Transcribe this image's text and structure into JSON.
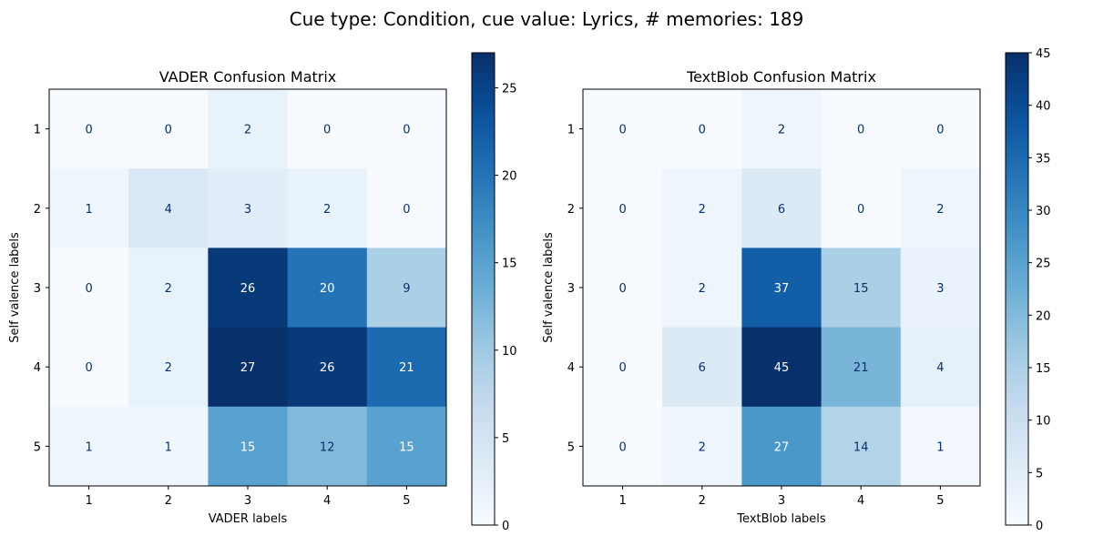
{
  "suptitle": "Cue type: Condition, cue value: Lyrics, # memories: 189",
  "chart_data": [
    {
      "type": "heatmap",
      "title": "VADER Confusion Matrix",
      "xlabel": "VADER labels",
      "ylabel": "Self valence labels",
      "x_categories": [
        "1",
        "2",
        "3",
        "4",
        "5"
      ],
      "y_categories": [
        "1",
        "2",
        "3",
        "4",
        "5"
      ],
      "values": [
        [
          0,
          0,
          2,
          0,
          0
        ],
        [
          1,
          4,
          3,
          2,
          0
        ],
        [
          0,
          2,
          26,
          20,
          9
        ],
        [
          0,
          2,
          27,
          26,
          21
        ],
        [
          1,
          1,
          15,
          12,
          15
        ]
      ],
      "colormap": "Blues",
      "colorbar": {
        "range": [
          0,
          27
        ],
        "ticks": [
          0,
          5,
          10,
          15,
          20,
          25
        ]
      },
      "grid": false
    },
    {
      "type": "heatmap",
      "title": "TextBlob Confusion Matrix",
      "xlabel": "TextBlob labels",
      "ylabel": "Self valence labels",
      "x_categories": [
        "1",
        "2",
        "3",
        "4",
        "5"
      ],
      "y_categories": [
        "1",
        "2",
        "3",
        "4",
        "5"
      ],
      "values": [
        [
          0,
          0,
          2,
          0,
          0
        ],
        [
          0,
          2,
          6,
          0,
          2
        ],
        [
          0,
          2,
          37,
          15,
          3
        ],
        [
          0,
          6,
          45,
          21,
          4
        ],
        [
          0,
          2,
          27,
          14,
          1
        ]
      ],
      "colormap": "Blues",
      "colorbar": {
        "range": [
          0,
          45
        ],
        "ticks": [
          0,
          5,
          10,
          15,
          20,
          25,
          30,
          35,
          40,
          45
        ]
      },
      "grid": false
    }
  ]
}
